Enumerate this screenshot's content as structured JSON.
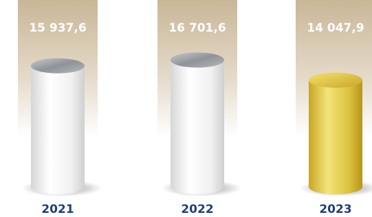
{
  "chart_data": {
    "type": "bar",
    "categories": [
      "2021",
      "2022",
      "2023"
    ],
    "values": [
      15937.6,
      16701.6,
      14047.9
    ],
    "value_labels": [
      "15 937,6",
      "16 701,6",
      "14 047,9"
    ],
    "colors": [
      "#ececec",
      "#ececec",
      "#d8bf35"
    ]
  }
}
